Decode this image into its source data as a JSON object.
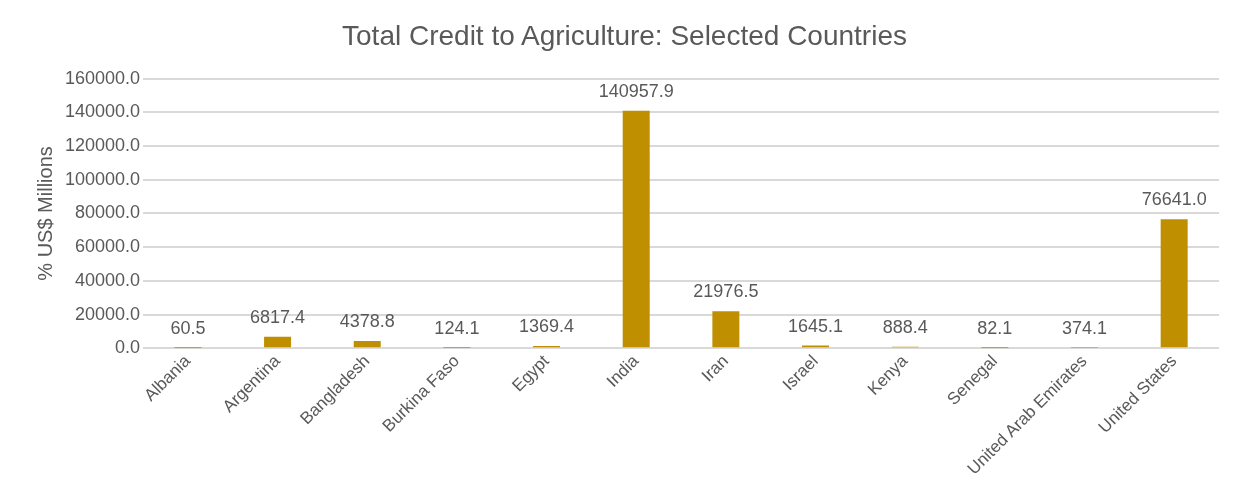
{
  "chart_data": {
    "type": "bar",
    "title": "Total Credit to Agriculture: Selected Countries",
    "ylabel": "% US$ Millions",
    "categories": [
      "Albania",
      "Argentina",
      "Bangladesh",
      "Burkina Faso",
      "Egypt",
      "India",
      "Iran",
      "Israel",
      "Kenya",
      "Senegal",
      "United Arab Emirates",
      "United States"
    ],
    "values": [
      60.5,
      6817.4,
      4378.8,
      124.1,
      1369.4,
      140957.9,
      21976.5,
      1645.1,
      888.4,
      82.1,
      374.1,
      76641.0
    ],
    "value_labels": [
      "60.5",
      "6817.4",
      "4378.8",
      "124.1",
      "1369.4",
      "140957.9",
      "21976.5",
      "1645.1",
      "888.4",
      "82.1",
      "374.1",
      "76641.0"
    ],
    "color": "#bf8f00",
    "ylim": [
      0,
      160000
    ],
    "yticks": [
      {
        "value": 0,
        "label": "0.0"
      },
      {
        "value": 20000,
        "label": "20000.0"
      },
      {
        "value": 40000,
        "label": "40000.0"
      },
      {
        "value": 60000,
        "label": "60000.0"
      },
      {
        "value": 80000,
        "label": "80000.0"
      },
      {
        "value": 100000,
        "label": "100000.0"
      },
      {
        "value": 120000,
        "label": "120000.0"
      },
      {
        "value": 140000,
        "label": "140000.0"
      },
      {
        "value": 160000,
        "label": "160000.0"
      }
    ],
    "grid": "y",
    "legend": false
  }
}
